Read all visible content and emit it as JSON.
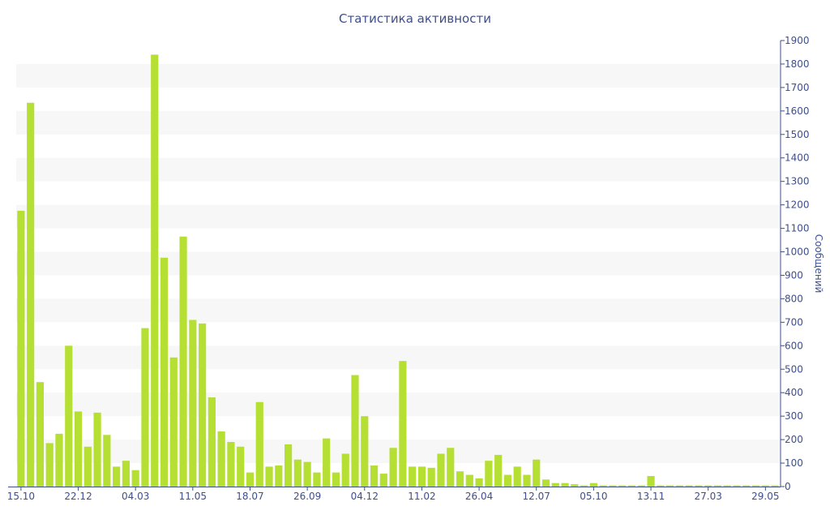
{
  "chart_data": {
    "type": "bar",
    "title": "Статистика активности",
    "ylabel": "Сообщений",
    "y_axis_position": "right",
    "ylim": [
      0,
      1900
    ],
    "y_ticks": [
      0,
      100,
      200,
      300,
      400,
      500,
      600,
      700,
      800,
      900,
      1000,
      1100,
      1200,
      1300,
      1400,
      1500,
      1600,
      1700,
      1800,
      1900
    ],
    "x_tick_labels": [
      {
        "index": 0,
        "label": "15.10"
      },
      {
        "index": 6,
        "label": "22.12"
      },
      {
        "index": 12,
        "label": "04.03"
      },
      {
        "index": 18,
        "label": "11.05"
      },
      {
        "index": 24,
        "label": "18.07"
      },
      {
        "index": 30,
        "label": "26.09"
      },
      {
        "index": 36,
        "label": "04.12"
      },
      {
        "index": 42,
        "label": "11.02"
      },
      {
        "index": 48,
        "label": "26.04"
      },
      {
        "index": 54,
        "label": "12.07"
      },
      {
        "index": 60,
        "label": "05.10"
      },
      {
        "index": 66,
        "label": "13.11"
      },
      {
        "index": 72,
        "label": "27.03"
      },
      {
        "index": 78,
        "label": "29.05"
      }
    ],
    "grid": "alternating horizontal bands",
    "legend": "none",
    "colors": {
      "bar": "#b5e033",
      "band": "#f7f7f7",
      "axis": "#3d4f8f",
      "text": "#3d4f8f"
    },
    "values": [
      1175,
      1635,
      445,
      185,
      225,
      600,
      320,
      170,
      315,
      220,
      85,
      110,
      70,
      675,
      1840,
      975,
      550,
      1065,
      710,
      695,
      380,
      235,
      190,
      170,
      60,
      360,
      85,
      90,
      180,
      115,
      105,
      60,
      205,
      60,
      140,
      475,
      300,
      90,
      55,
      165,
      535,
      85,
      85,
      80,
      140,
      165,
      65,
      50,
      35,
      110,
      135,
      50,
      85,
      50,
      115,
      30,
      15,
      15,
      10,
      5,
      15,
      5,
      5,
      5,
      5,
      5,
      45,
      5,
      5,
      5,
      5,
      5,
      5,
      5,
      5,
      5,
      5,
      5,
      5,
      5
    ]
  }
}
